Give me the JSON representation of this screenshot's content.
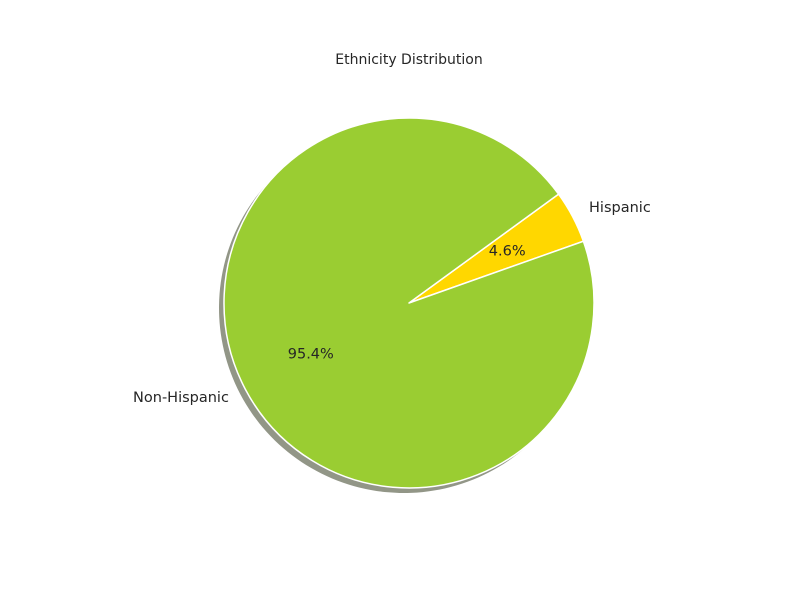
{
  "chart_data": {
    "type": "pie",
    "title": "Ethnicity Distribution",
    "categories": [
      "Hispanic",
      "Non-Hispanic"
    ],
    "values": [
      4.6,
      95.4
    ],
    "percent_labels": [
      "4.6%",
      "95.4%"
    ],
    "colors": [
      "#ffd700",
      "#9acd32"
    ],
    "shadow": true,
    "edge_color": "#ffffff",
    "legend": "none"
  }
}
